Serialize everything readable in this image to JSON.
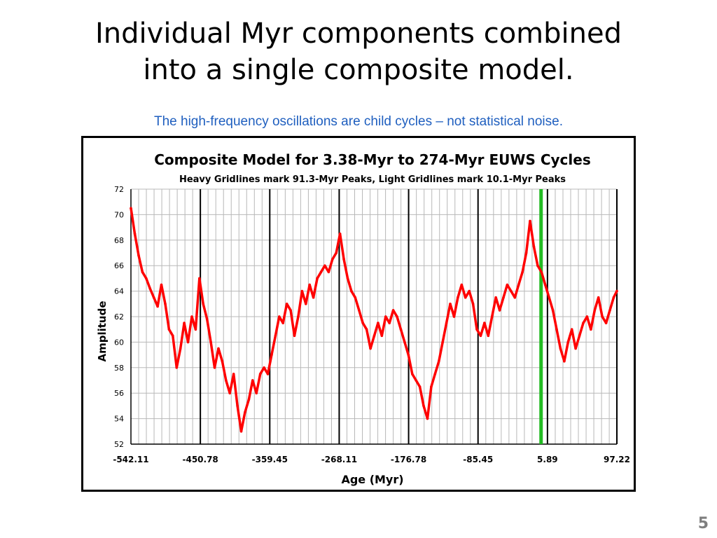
{
  "slide": {
    "title_line1": "Individual Myr components combined",
    "title_line2": "into a single composite model.",
    "subtitle": "The high-frequency oscillations are child cycles – not statistical noise.",
    "page_number": "5"
  },
  "colors": {
    "series": "#ff0000",
    "highlight": "#22bb22",
    "subtitle": "#1f5fbf",
    "grid_light": "#b8b8b8",
    "grid_heavy": "#000000"
  },
  "chart_data": {
    "type": "line",
    "title": "Composite Model for 3.38-Myr to 274-Myr EUWS Cycles",
    "subtitle": "Heavy Gridlines mark 91.3-Myr Peaks,  Light Gridlines mark 10.1-Myr Peaks",
    "xlabel": "Age (Myr)",
    "ylabel": "Amplitude",
    "xlim": [
      -542.11,
      97.22
    ],
    "ylim": [
      52,
      72
    ],
    "x_ticks": [
      -542.11,
      -450.78,
      -359.45,
      -268.11,
      -176.78,
      -85.45,
      5.89,
      97.22
    ],
    "x_tick_labels": [
      "-542.11",
      "-450.78",
      "-359.45",
      "-268.11",
      "-176.78",
      "-85.45",
      "5.89",
      "97.22"
    ],
    "y_ticks": [
      52,
      54,
      56,
      58,
      60,
      62,
      64,
      66,
      68,
      70,
      72
    ],
    "y_tick_labels": [
      "52",
      "54",
      "56",
      "58",
      "60",
      "62",
      "64",
      "66",
      "68",
      "70",
      "72"
    ],
    "heavy_gridlines_x": [
      -450.78,
      -359.45,
      -268.11,
      -176.78,
      -85.45,
      5.89,
      97.22
    ],
    "light_gridline_step": 10.15,
    "highlight_line_x": -2.5,
    "series": [
      {
        "x": [
          -542.11,
          -537,
          -532,
          -527,
          -522,
          -517,
          -512,
          -507,
          -502,
          -497,
          -492,
          -487,
          -482,
          -477,
          -472,
          -467,
          -462,
          -457,
          -452,
          -447,
          -442,
          -437,
          -432,
          -427,
          -422,
          -417,
          -412,
          -407,
          -402,
          -397,
          -392,
          -387,
          -382,
          -377,
          -372,
          -367,
          -362,
          -357,
          -352,
          -347,
          -342,
          -337,
          -332,
          -327,
          -322,
          -317,
          -312,
          -307,
          -302,
          -297,
          -292,
          -287,
          -282,
          -277,
          -272,
          -267,
          -262,
          -257,
          -252,
          -247,
          -242,
          -237,
          -232,
          -227,
          -222,
          -217,
          -212,
          -207,
          -202,
          -197,
          -192,
          -187,
          -182,
          -177,
          -172,
          -167,
          -162,
          -157,
          -152,
          -147,
          -142,
          -137,
          -132,
          -127,
          -122,
          -117,
          -112,
          -107,
          -102,
          -97,
          -92,
          -87,
          -82,
          -77,
          -72,
          -67,
          -62,
          -57,
          -52,
          -47,
          -42,
          -37,
          -32,
          -27,
          -22,
          -17,
          -12,
          -7,
          -2,
          3,
          8,
          13,
          18,
          23,
          28,
          33,
          38,
          43,
          48,
          53,
          58,
          63,
          68,
          73,
          78,
          83,
          88,
          93,
          97.22
        ],
        "values": [
          70.5,
          68.5,
          66.8,
          65.5,
          65.0,
          64.2,
          63.5,
          62.8,
          64.5,
          63.0,
          61.0,
          60.5,
          58.0,
          59.5,
          61.5,
          60.0,
          62.0,
          61.0,
          65.0,
          63.0,
          61.8,
          60.0,
          58.0,
          59.5,
          58.5,
          57.0,
          56.0,
          57.5,
          55.0,
          53.0,
          54.5,
          55.5,
          57.0,
          56.0,
          57.5,
          58.0,
          57.5,
          59.0,
          60.5,
          62.0,
          61.5,
          63.0,
          62.5,
          60.5,
          62.0,
          64.0,
          63.0,
          64.5,
          63.5,
          65.0,
          65.5,
          66.0,
          65.5,
          66.5,
          67.0,
          68.5,
          66.5,
          65.0,
          64.0,
          63.5,
          62.5,
          61.5,
          61.0,
          59.5,
          60.5,
          61.5,
          60.5,
          62.0,
          61.5,
          62.5,
          62.0,
          61.0,
          60.0,
          59.0,
          57.5,
          57.0,
          56.5,
          55.0,
          54.0,
          56.5,
          57.5,
          58.5,
          60.0,
          61.5,
          63.0,
          62.0,
          63.5,
          64.5,
          63.5,
          64.0,
          63.0,
          61.0,
          60.5,
          61.5,
          60.5,
          62.0,
          63.5,
          62.5,
          63.5,
          64.5,
          64.0,
          63.5,
          64.5,
          65.5,
          67.0,
          69.5,
          67.5,
          66.0,
          65.5,
          64.5,
          63.5,
          62.5,
          61.0,
          59.5,
          58.5,
          60.0,
          61.0,
          59.5,
          60.5,
          61.5,
          62.0,
          61.0,
          62.5,
          63.5,
          62.0,
          61.5,
          62.5,
          63.5,
          64.0
        ]
      }
    ]
  }
}
